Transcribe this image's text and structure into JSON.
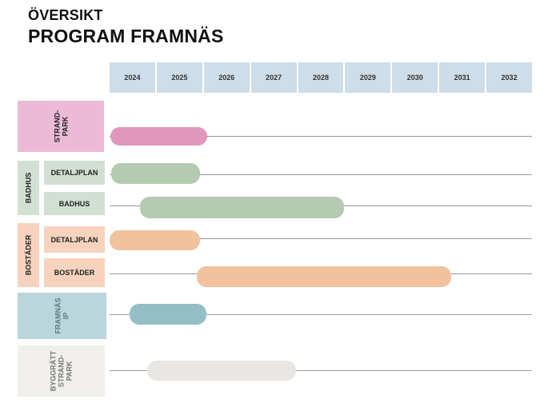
{
  "header": {
    "subtitle": "ÖVERSIKT",
    "title": "PROGRAM FRAMNÄS"
  },
  "years": [
    "2024",
    "2025",
    "2026",
    "2027",
    "2028",
    "2029",
    "2030",
    "2031",
    "2032"
  ],
  "groups": {
    "strandpark": {
      "label": "STRAND-\nPARK",
      "color": "#ebbbd6"
    },
    "badhus": {
      "label": "BADHUS",
      "color": "#d2dfd3"
    },
    "bostader": {
      "label": "BOSTÄDER",
      "color": "#f7d3bd"
    },
    "framnas_ip": {
      "label": "FRAMNÄS\nIP",
      "color": "#b8d6dc"
    },
    "byggratt": {
      "label": "BYGGRÄTT\nSTRAND-\nPARK",
      "color": "#f0efeb"
    }
  },
  "rows": {
    "badhus_detaljplan": {
      "label": "DETALJPLAN"
    },
    "badhus_badhus": {
      "label": "BADHUS"
    },
    "bostader_detaljplan": {
      "label": "DETALJPLAN"
    },
    "bostader_bostader": {
      "label": "BOSTÄDER"
    }
  },
  "bar_colors": {
    "pink": "#e197bb",
    "green": "#b4cbb1",
    "orange": "#f2c29f",
    "teal": "#93bec6",
    "grey": "#e9e6e3"
  }
}
